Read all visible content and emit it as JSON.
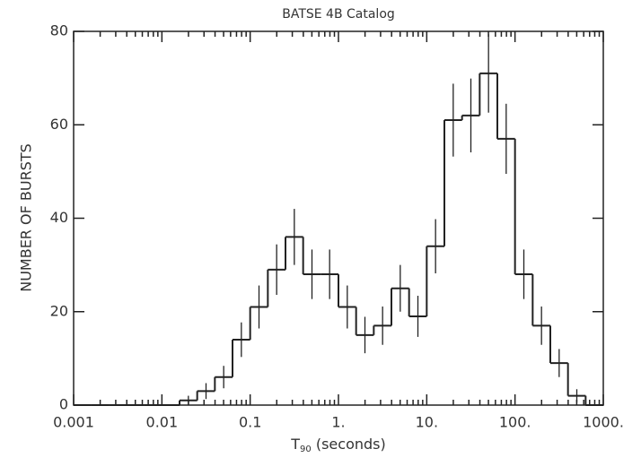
{
  "chart_data": {
    "type": "histogram",
    "title": "BATSE 4B Catalog",
    "x_label": {
      "main": "T",
      "sub": "90",
      "rest": " (seconds)"
    },
    "y_label": "NUMBER OF BURSTS",
    "x_log": true,
    "bins": [
      0.001,
      0.001585,
      0.002512,
      0.003981,
      0.00631,
      0.01,
      0.01585,
      0.02512,
      0.03981,
      0.0631,
      0.1,
      0.1585,
      0.2512,
      0.3981,
      0.631,
      1,
      1.585,
      2.512,
      3.981,
      6.31,
      10,
      15.85,
      25.12,
      39.81,
      63.1,
      100,
      158.5,
      251.2,
      398.1,
      631,
      1000
    ],
    "values": [
      0,
      0,
      0,
      0,
      0,
      0,
      1,
      3,
      6,
      14,
      21,
      29,
      36,
      28,
      28,
      21,
      15,
      17,
      25,
      19,
      34,
      61,
      62,
      71,
      57,
      28,
      17,
      9,
      2,
      0
    ],
    "errors": [
      0,
      0,
      0,
      0,
      0,
      0,
      1,
      1.7,
      2.4,
      3.7,
      4.6,
      5.4,
      6,
      5.3,
      5.3,
      4.6,
      3.9,
      4.1,
      5,
      4.4,
      5.8,
      7.8,
      7.9,
      8.4,
      7.5,
      5.3,
      4.1,
      3,
      1.4,
      0
    ],
    "color": "#222222",
    "xlim": [
      0.001,
      1000
    ],
    "xticks": [
      0.001,
      0.01,
      0.1,
      {
        "value": 1,
        "label": "1."
      },
      {
        "value": 10,
        "label": "10."
      },
      {
        "value": 100,
        "label": "100."
      },
      {
        "value": 1000,
        "label": "1000."
      }
    ],
    "ylim": [
      0,
      80
    ],
    "yticks": [
      0,
      20,
      40,
      60,
      80
    ]
  }
}
